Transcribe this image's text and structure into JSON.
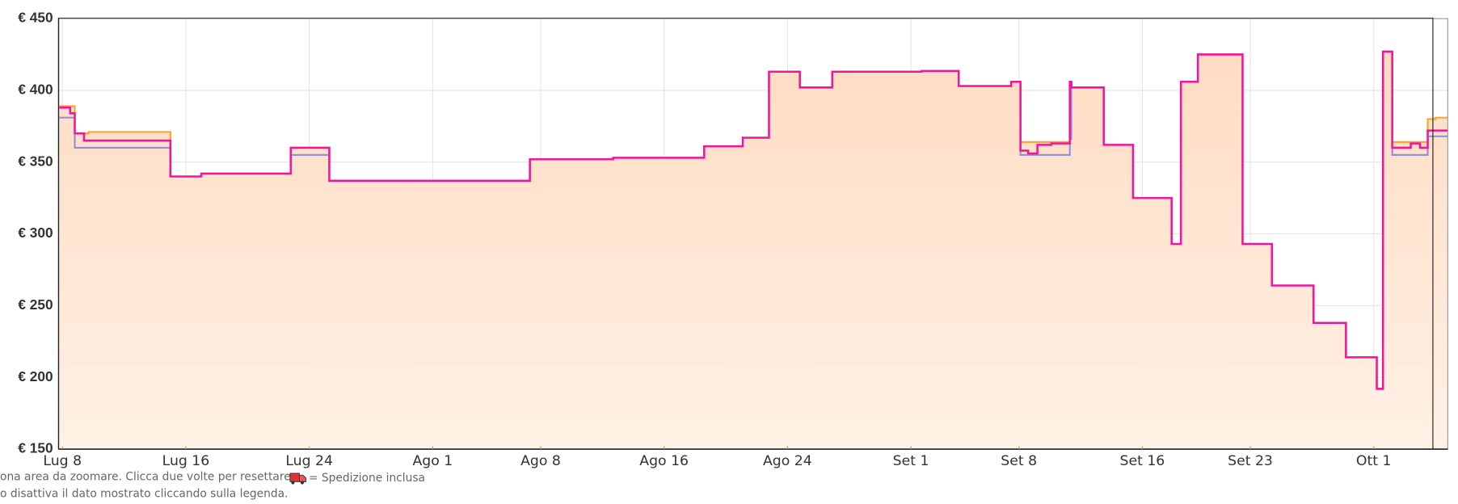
{
  "chart_data": {
    "type": "line",
    "xlim": [
      7.75,
      97.8
    ],
    "xticks": [
      {
        "value": 8,
        "label": "Lug 8"
      },
      {
        "value": 16,
        "label": "Lug 16"
      },
      {
        "value": 24,
        "label": "Lug 24"
      },
      {
        "value": 32,
        "label": "Ago 1"
      },
      {
        "value": 39,
        "label": "Ago 8"
      },
      {
        "value": 47,
        "label": "Ago 16"
      },
      {
        "value": 55,
        "label": "Ago 24"
      },
      {
        "value": 63,
        "label": "Set 1"
      },
      {
        "value": 70,
        "label": "Set 8"
      },
      {
        "value": 78,
        "label": "Set 16"
      },
      {
        "value": 85,
        "label": "Set 23"
      },
      {
        "value": 93,
        "label": "Ott 1"
      }
    ],
    "ylim": [
      150,
      450
    ],
    "yticks": [
      {
        "value": 150,
        "label": "€ 150"
      },
      {
        "value": 200,
        "label": "€ 200"
      },
      {
        "value": 250,
        "label": "€ 250"
      },
      {
        "value": 300,
        "label": "€ 300"
      },
      {
        "value": 350,
        "label": "€ 350"
      },
      {
        "value": 400,
        "label": "€ 400"
      },
      {
        "value": 450,
        "label": "€ 450"
      }
    ],
    "grid": true,
    "step": true,
    "series": [
      {
        "color": "#ff9f2a",
        "area": true,
        "x": [
          7.8,
          8.8,
          9.7,
          15.0,
          17.0,
          22.8,
          25.3,
          38.3,
          43.7,
          49.6,
          52.1,
          53.8,
          55.8,
          57.9,
          63.7,
          66.1,
          69.5,
          70.1,
          73.3,
          73.4,
          75.5,
          77.4,
          79.9,
          80.5,
          81.6,
          84.5,
          86.4,
          89.1,
          91.2,
          93.2,
          93.6,
          94.2,
          96.5,
          97.0
        ],
        "values": [
          389,
          370,
          371,
          340,
          342,
          360,
          337,
          352,
          353,
          361,
          367,
          413,
          402,
          413,
          413.5,
          403,
          406,
          364,
          406,
          402,
          362,
          325,
          293,
          406,
          425,
          293,
          264,
          238,
          214,
          192,
          427,
          364,
          380,
          381
        ]
      },
      {
        "color": "#8c8ce0",
        "x": [
          7.8,
          8.8,
          15.0,
          17.0,
          22.8,
          25.3,
          38.3,
          43.7,
          49.6,
          52.1,
          53.8,
          55.8,
          57.9,
          63.7,
          66.1,
          69.5,
          70.1,
          73.3,
          73.4,
          75.5,
          77.4,
          79.9,
          80.5,
          81.6,
          84.5,
          86.4,
          89.1,
          91.2,
          93.2,
          93.6,
          94.2,
          96.5,
          97.0
        ],
        "values": [
          381,
          360,
          340,
          342,
          355,
          337,
          352,
          353,
          361,
          367,
          413,
          402,
          413,
          413.5,
          403,
          406,
          355,
          366,
          402,
          362,
          325,
          293,
          406,
          425,
          293,
          264,
          238,
          214,
          192,
          427,
          355,
          368,
          368
        ]
      },
      {
        "color": "#f0169c",
        "x": [
          7.8,
          8.5,
          8.8,
          9.4,
          15.0,
          17.0,
          22.8,
          25.3,
          38.3,
          43.7,
          49.6,
          52.1,
          53.8,
          55.8,
          57.9,
          63.7,
          66.1,
          69.5,
          70.1,
          70.6,
          71.2,
          72.1,
          73.3,
          73.4,
          75.5,
          77.4,
          79.9,
          80.5,
          81.6,
          84.5,
          86.4,
          89.1,
          91.2,
          93.2,
          93.6,
          94.2,
          95.4,
          96.0,
          96.5,
          97.0
        ],
        "values": [
          388,
          384,
          370,
          365,
          340,
          342,
          360,
          337,
          352,
          353,
          361,
          367,
          413,
          402,
          413,
          413.5,
          403,
          406,
          358,
          356,
          362,
          363,
          406,
          402,
          362,
          325,
          293,
          406,
          425,
          293,
          264,
          238,
          214,
          192,
          427,
          360,
          363,
          360,
          372,
          372
        ]
      }
    ]
  },
  "footer": {
    "line1": "ona area da zoomare. Clicca due volte per resettare.",
    "shipping": "= Spedizione inclusa",
    "line2": "o disattiva il dato mostrato cliccando sulla legenda."
  }
}
